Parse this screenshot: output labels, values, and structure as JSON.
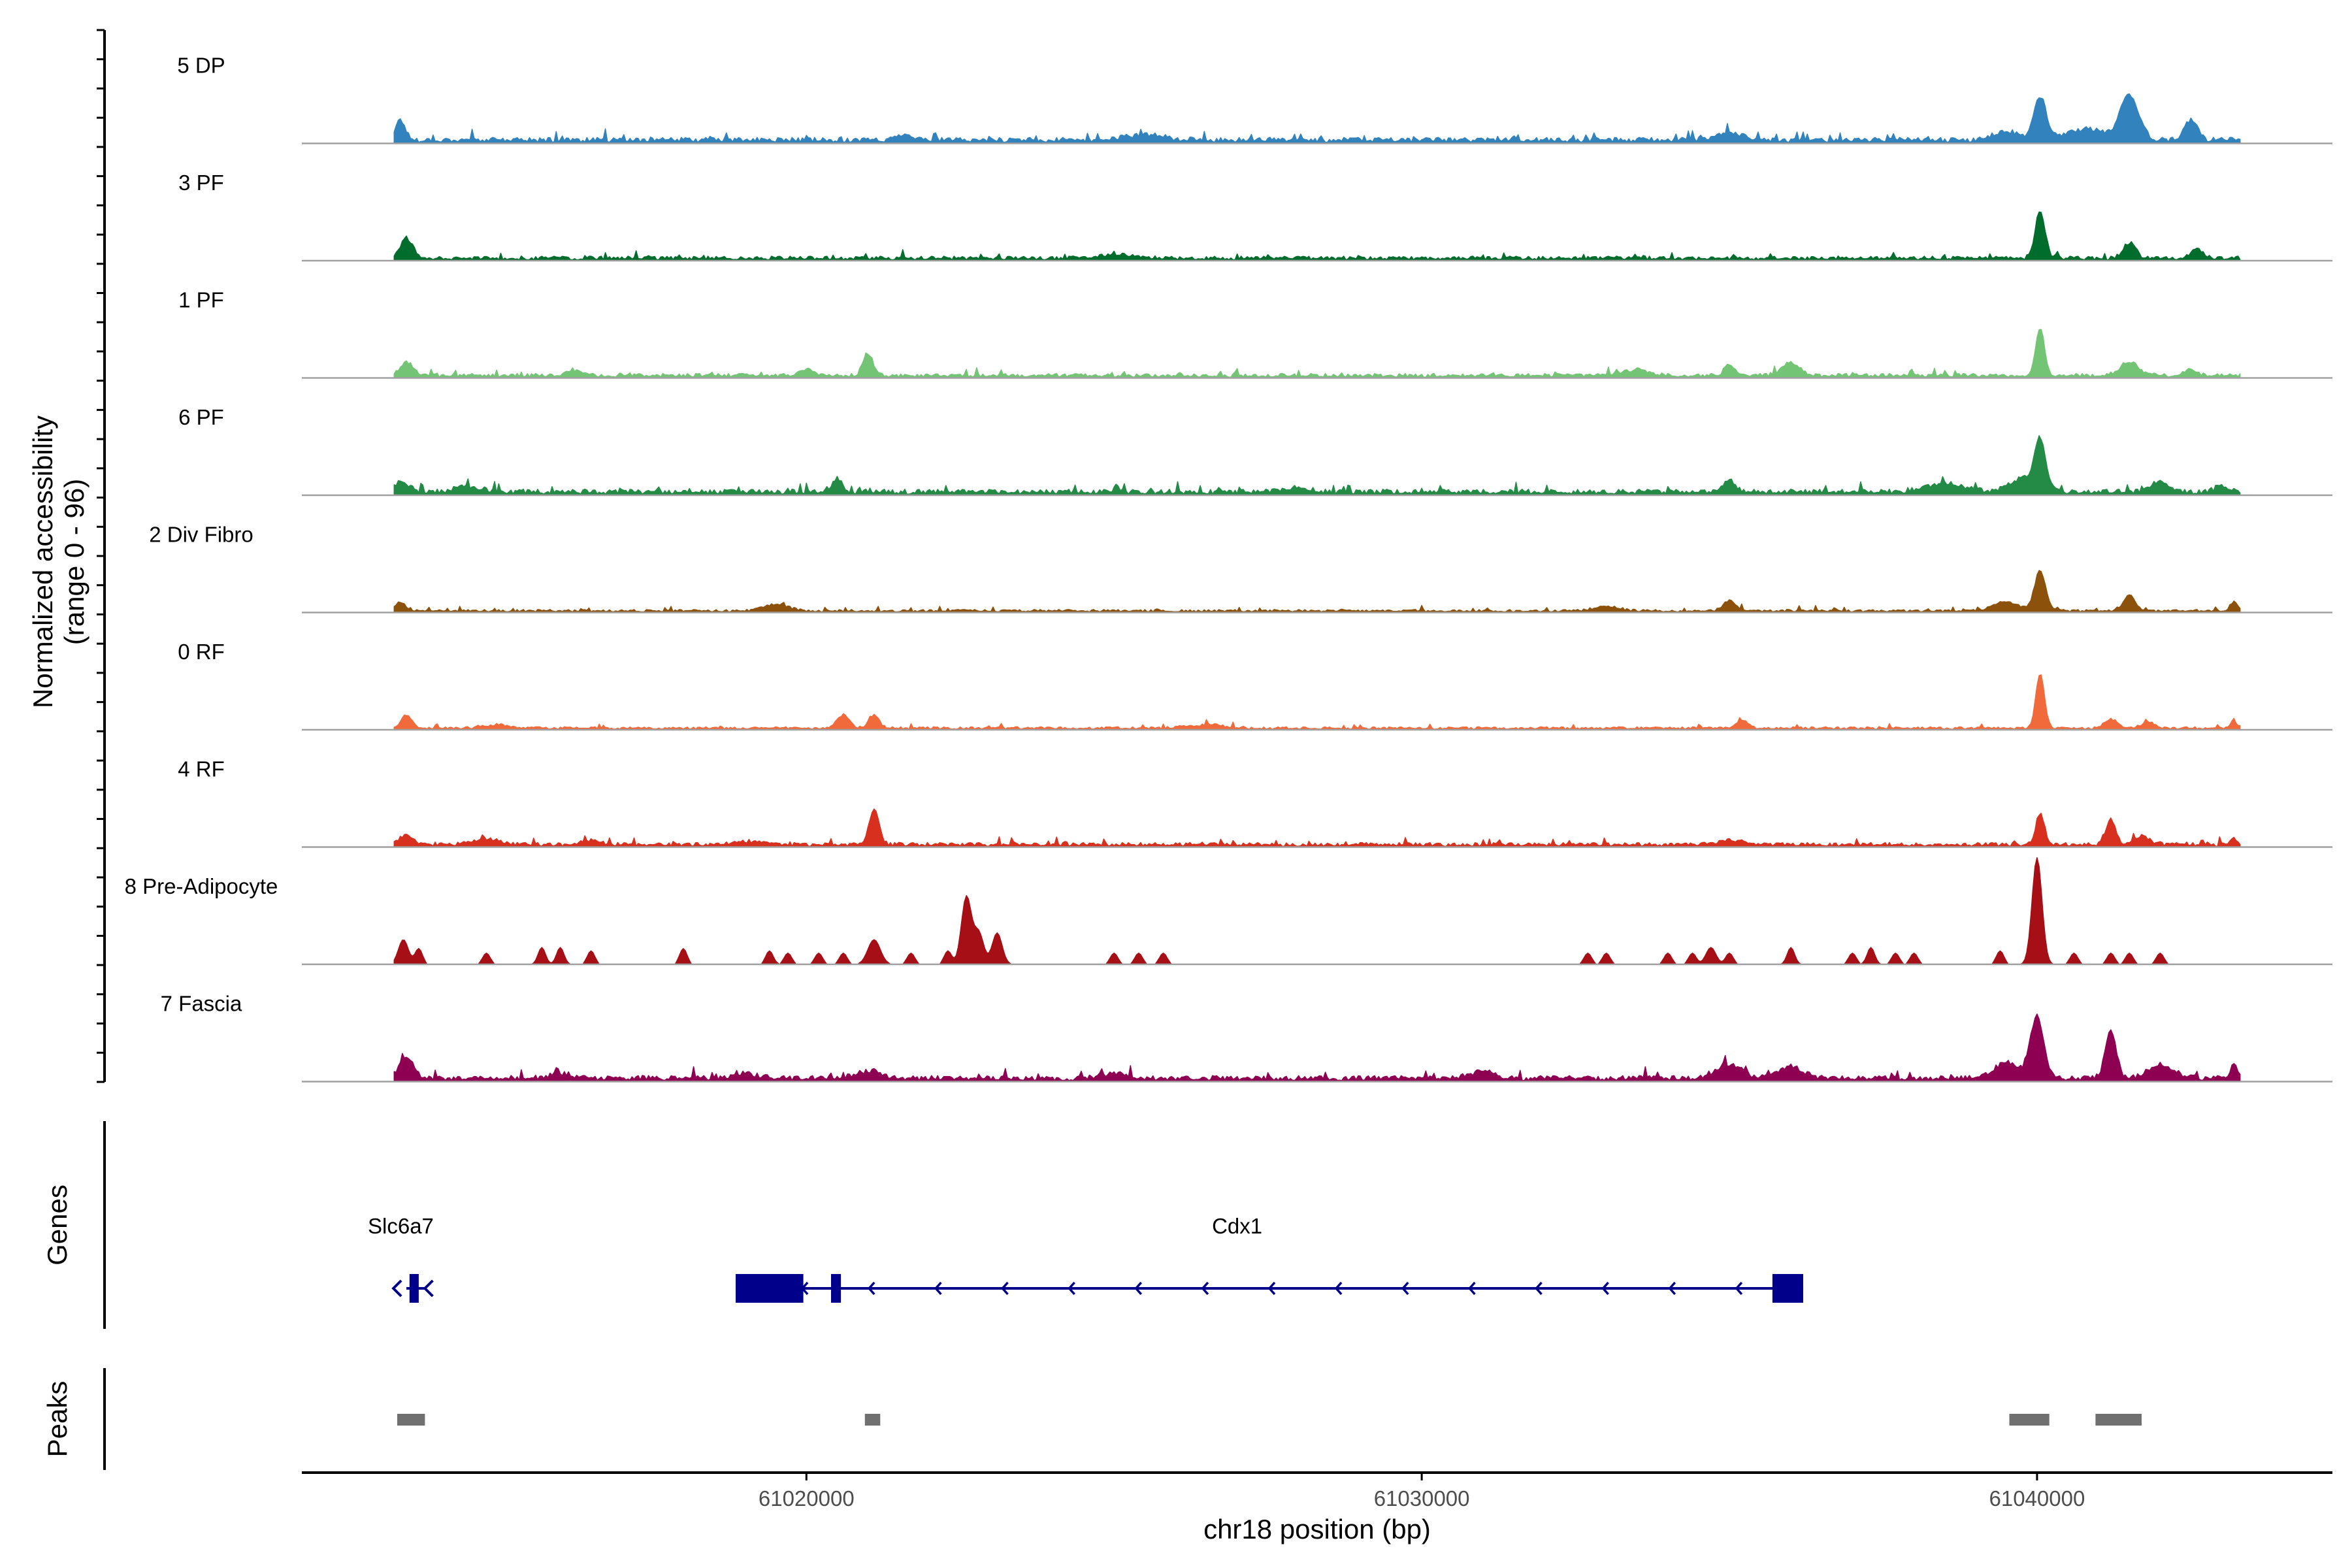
{
  "chart_data": {
    "type": "area",
    "title": "",
    "ylabel_line1": "Normalized accessibility",
    "ylabel_line2": "(range 0 - 96)",
    "y_range": [
      0,
      96
    ],
    "xlabel": "chr18 position (bp)",
    "xlim": [
      61011800,
      61044800
    ],
    "x_ticks": [
      61020000,
      61030000,
      61040000
    ],
    "x_tick_labels": [
      "61020000",
      "61030000",
      "61040000"
    ],
    "signal_range_bp": [
      61013300,
      61043300
    ],
    "tracks": [
      {
        "name": "5 DP",
        "color": "#3182bd",
        "sparse": false,
        "baseline": 4,
        "peaks": [
          [
            61013400,
            18,
            80
          ],
          [
            61021600,
            6,
            120
          ],
          [
            61025500,
            5,
            300
          ],
          [
            61035000,
            7,
            200
          ],
          [
            61039500,
            8,
            200
          ],
          [
            61040050,
            38,
            100
          ],
          [
            61040800,
            10,
            300
          ],
          [
            61041500,
            40,
            150
          ],
          [
            61042500,
            18,
            100
          ]
        ]
      },
      {
        "name": "3 PF",
        "color": "#006d2c",
        "sparse": false,
        "baseline": 3,
        "peaks": [
          [
            61013500,
            18,
            100
          ],
          [
            61025000,
            3,
            300
          ],
          [
            61040050,
            42,
            80
          ],
          [
            61041500,
            14,
            100
          ],
          [
            61042600,
            8,
            100
          ]
        ]
      },
      {
        "name": "1 PF",
        "color": "#74c476",
        "sparse": false,
        "baseline": 3,
        "peaks": [
          [
            61013500,
            12,
            100
          ],
          [
            61016200,
            5,
            100
          ],
          [
            61020000,
            5,
            100
          ],
          [
            61021000,
            20,
            80
          ],
          [
            61033500,
            5,
            200
          ],
          [
            61035000,
            10,
            80
          ],
          [
            61036000,
            10,
            150
          ],
          [
            61040050,
            42,
            70
          ],
          [
            61041500,
            12,
            150
          ],
          [
            61042500,
            5,
            100
          ]
        ]
      },
      {
        "name": "6 PF",
        "color": "#238b45",
        "sparse": false,
        "baseline": 4,
        "peaks": [
          [
            61013400,
            8,
            150
          ],
          [
            61014500,
            5,
            200
          ],
          [
            61020500,
            12,
            80
          ],
          [
            61028000,
            4,
            200
          ],
          [
            61035000,
            10,
            100
          ],
          [
            61038500,
            8,
            300
          ],
          [
            61039800,
            12,
            250
          ],
          [
            61040050,
            40,
            90
          ],
          [
            61042000,
            8,
            150
          ],
          [
            61043000,
            6,
            100
          ]
        ]
      },
      {
        "name": "2 Div Fibro",
        "color": "#8c510a",
        "sparse": false,
        "baseline": 2,
        "peaks": [
          [
            61013400,
            8,
            80
          ],
          [
            61019500,
            6,
            200
          ],
          [
            61033000,
            4,
            200
          ],
          [
            61035000,
            9,
            100
          ],
          [
            61039500,
            8,
            200
          ],
          [
            61040050,
            36,
            90
          ],
          [
            61041500,
            15,
            90
          ],
          [
            61043200,
            8,
            60
          ]
        ]
      },
      {
        "name": "0 RF",
        "color": "#f06a3b",
        "sparse": false,
        "baseline": 2,
        "peaks": [
          [
            61013500,
            12,
            80
          ],
          [
            61015000,
            3,
            200
          ],
          [
            61020600,
            12,
            100
          ],
          [
            61021100,
            12,
            80
          ],
          [
            61026500,
            3,
            300
          ],
          [
            61035200,
            6,
            100
          ],
          [
            61040050,
            48,
            70
          ],
          [
            61041200,
            8,
            100
          ],
          [
            61041800,
            6,
            100
          ],
          [
            61043200,
            6,
            60
          ]
        ]
      },
      {
        "name": "4 RF",
        "color": "#d7301f",
        "sparse": false,
        "baseline": 3,
        "peaks": [
          [
            61013500,
            8,
            120
          ],
          [
            61014800,
            5,
            200
          ],
          [
            61016500,
            4,
            150
          ],
          [
            61019000,
            3,
            200
          ],
          [
            61021100,
            32,
            80
          ],
          [
            61035000,
            4,
            200
          ],
          [
            61040050,
            28,
            70
          ],
          [
            61041200,
            22,
            80
          ],
          [
            61041700,
            8,
            120
          ],
          [
            61043200,
            6,
            60
          ]
        ]
      },
      {
        "name": "8 Pre-Adipocyte",
        "color": "#a50f15",
        "sparse": true,
        "baseline": 0,
        "peaks": [
          [
            61013450,
            22,
            80
          ],
          [
            61013700,
            14,
            60
          ],
          [
            61014800,
            10,
            60
          ],
          [
            61015700,
            15,
            60
          ],
          [
            61016000,
            15,
            60
          ],
          [
            61016500,
            12,
            60
          ],
          [
            61018000,
            14,
            60
          ],
          [
            61019400,
            12,
            60
          ],
          [
            61019700,
            10,
            60
          ],
          [
            61020200,
            10,
            60
          ],
          [
            61020600,
            10,
            60
          ],
          [
            61021100,
            22,
            100
          ],
          [
            61021700,
            10,
            60
          ],
          [
            61022300,
            12,
            60
          ],
          [
            61022600,
            60,
            80
          ],
          [
            61022800,
            28,
            80
          ],
          [
            61023100,
            28,
            80
          ],
          [
            61025000,
            10,
            60
          ],
          [
            61025400,
            10,
            60
          ],
          [
            61025800,
            10,
            60
          ],
          [
            61032700,
            10,
            60
          ],
          [
            61033000,
            10,
            60
          ],
          [
            61034000,
            10,
            60
          ],
          [
            61034400,
            10,
            60
          ],
          [
            61034700,
            15,
            80
          ],
          [
            61035000,
            10,
            60
          ],
          [
            61036000,
            15,
            60
          ],
          [
            61037000,
            10,
            60
          ],
          [
            61037300,
            15,
            60
          ],
          [
            61037700,
            10,
            60
          ],
          [
            61038000,
            10,
            60
          ],
          [
            61039400,
            12,
            60
          ],
          [
            61040000,
            95,
            80
          ],
          [
            61040600,
            10,
            60
          ],
          [
            61041200,
            10,
            60
          ],
          [
            61041500,
            10,
            60
          ],
          [
            61042000,
            10,
            60
          ]
        ]
      },
      {
        "name": "7 Fascia",
        "color": "#8e0152",
        "sparse": false,
        "baseline": 4,
        "peaks": [
          [
            61013500,
            18,
            120
          ],
          [
            61016000,
            4,
            200
          ],
          [
            61019000,
            4,
            200
          ],
          [
            61021000,
            6,
            200
          ],
          [
            61025000,
            4,
            200
          ],
          [
            61031000,
            6,
            200
          ],
          [
            61035000,
            12,
            200
          ],
          [
            61036000,
            10,
            200
          ],
          [
            61039500,
            14,
            200
          ],
          [
            61040000,
            55,
            110
          ],
          [
            61041200,
            42,
            90
          ],
          [
            61042000,
            12,
            200
          ],
          [
            61043200,
            12,
            60
          ]
        ]
      }
    ],
    "genes_panel_title": "Genes",
    "genes": [
      {
        "name": "Slc6a7",
        "strand": "-",
        "start": 61013500,
        "end": 61013800,
        "exons": [
          [
            61013550,
            61013700
          ]
        ],
        "label_pos": 61013500
      },
      {
        "name": "Cdx1",
        "strand": "-",
        "start": 61018850,
        "end": 61036200,
        "exons": [
          [
            61018850,
            61019950
          ],
          [
            61020400,
            61020560
          ],
          [
            61035700,
            61036200
          ]
        ],
        "label_pos": 61027000
      }
    ],
    "peaks_panel_title": "Peaks",
    "peak_regions": [
      [
        61013350,
        61013800
      ],
      [
        61020950,
        61021200
      ],
      [
        61039550,
        61040200
      ],
      [
        61040950,
        61041700
      ]
    ],
    "colors": {
      "axis": "#000000",
      "baseline": "#a0a0a0",
      "gene": "#00008b",
      "peak": "#707070"
    }
  }
}
